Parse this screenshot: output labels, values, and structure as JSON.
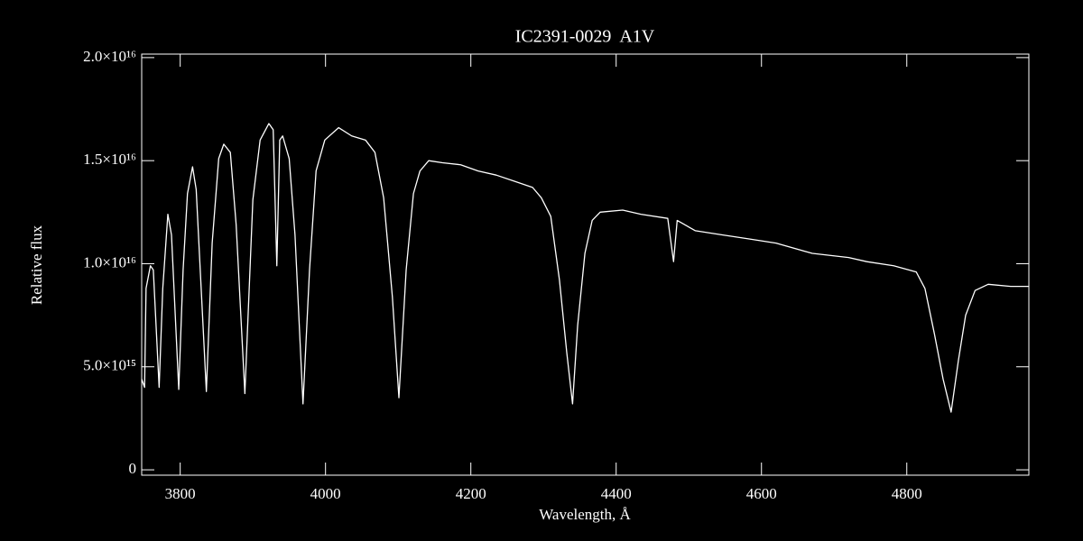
{
  "chart_data": {
    "type": "line",
    "title": "IC2391-0029  A1V",
    "xlabel": "Wavelength, Å",
    "ylabel": "Relative flux",
    "color": "#ffffff",
    "x": [
      3747,
      3751,
      3753,
      3759,
      3763,
      3771,
      3776,
      3783,
      3788,
      3798,
      3804,
      3810,
      3817,
      3822,
      3836,
      3844,
      3853,
      3860,
      3869,
      3877,
      3889,
      3900,
      3910,
      3922,
      3928,
      3933,
      3937,
      3941,
      3950,
      3958,
      3969,
      3978,
      3987,
      3999,
      4018,
      4036,
      4055,
      4068,
      4080,
      4092,
      4101,
      4111,
      4121,
      4130,
      4142,
      4161,
      4186,
      4210,
      4235,
      4260,
      4285,
      4297,
      4310,
      4322,
      4332,
      4340,
      4347,
      4357,
      4367,
      4378,
      4409,
      4434,
      4471,
      4479,
      4484,
      4509,
      4546,
      4583,
      4620,
      4670,
      4720,
      4745,
      4782,
      4813,
      4825,
      4838,
      4850,
      4861,
      4871,
      4881,
      4894,
      4912,
      4943,
      4968
    ],
    "values": [
      4400000000000000.0,
      4000000000000000.0,
      8800000000000000.0,
      9900000000000000.0,
      9700000000000000.0,
      4000000000000000.0,
      8800000000000000.0,
      1.24e+16,
      1.14e+16,
      3900000000000000.0,
      9700000000000000.0,
      1.34e+16,
      1.47e+16,
      1.36e+16,
      3800000000000000.0,
      1.1e+16,
      1.51e+16,
      1.58e+16,
      1.54e+16,
      1.19e+16,
      3700000000000000.0,
      1.31e+16,
      1.6e+16,
      1.68e+16,
      1.65e+16,
      9900000000000000.0,
      1.6e+16,
      1.62e+16,
      1.51e+16,
      1.14e+16,
      3200000000000000.0,
      9700000000000000.0,
      1.45e+16,
      1.6e+16,
      1.66e+16,
      1.62e+16,
      1.6e+16,
      1.54e+16,
      1.32e+16,
      8400000000000000.0,
      3500000000000000.0,
      9700000000000000.0,
      1.34e+16,
      1.45e+16,
      1.5e+16,
      1.49e+16,
      1.48e+16,
      1.45e+16,
      1.43e+16,
      1.4e+16,
      1.37e+16,
      1.32e+16,
      1.23e+16,
      9200000000000000.0,
      5700000000000000.0,
      3200000000000000.0,
      7000000000000000.0,
      1.05e+16,
      1.21e+16,
      1.25e+16,
      1.26e+16,
      1.24e+16,
      1.22e+16,
      1.01e+16,
      1.21e+16,
      1.16e+16,
      1.14e+16,
      1.12e+16,
      1.1e+16,
      1.05e+16,
      1.03e+16,
      1.01e+16,
      9900000000000000.0,
      9600000000000000.0,
      8800000000000000.0,
      6600000000000000.0,
      4400000000000000.0,
      2800000000000000.0,
      5300000000000000.0,
      7500000000000000.0,
      8700000000000000.0,
      9000000000000000.0,
      8900000000000000.0,
      8900000000000000.0
    ],
    "xlim": [
      3747,
      4968
    ],
    "xticks": [
      3800,
      4000,
      4200,
      4400,
      4600,
      4800
    ],
    "ylim": [
      -260000000000000.0,
      2.017e+16
    ],
    "yticks": [
      0,
      {
        "value": 5000000000000000.0,
        "label": "5.0×10¹⁵"
      },
      {
        "value": 1e+16,
        "label": "1.0×10¹⁶"
      },
      {
        "value": 1.5e+16,
        "label": "1.5×10¹⁶"
      },
      {
        "value": 2e+16,
        "label": "2.0×10¹⁶"
      }
    ],
    "grid": false
  }
}
